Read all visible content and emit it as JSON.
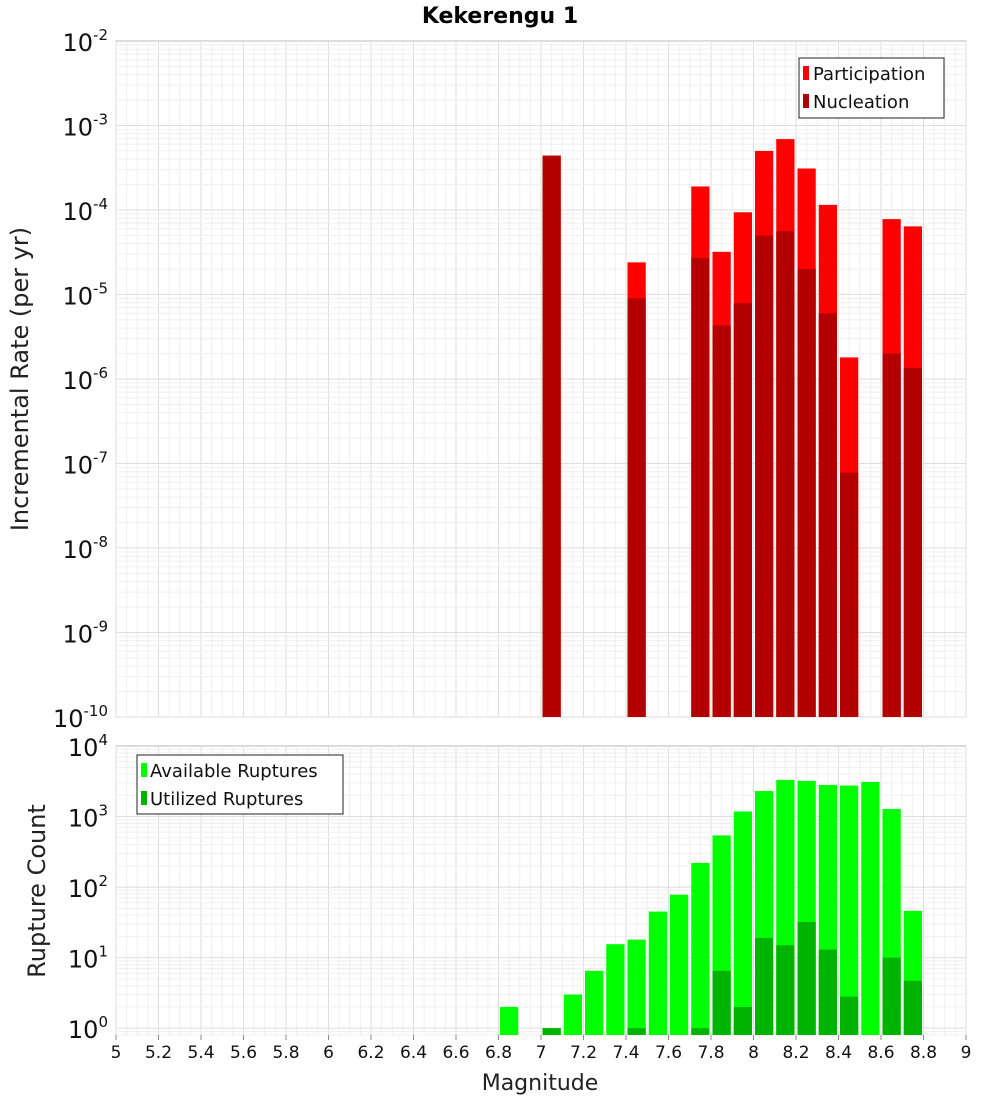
{
  "chart_data": [
    {
      "type": "bar",
      "title": "Kekerengu 1",
      "xlabel": "",
      "ylabel": "Incremental Rate (per yr)",
      "y_scale": "log",
      "ylim": [
        1e-10,
        0.01
      ],
      "xlim": [
        5,
        9
      ],
      "grid": true,
      "legend_position": "top-right",
      "series": [
        {
          "name": "Participation",
          "color": "#ff0000",
          "points": [
            [
              7.05,
              0.00044
            ],
            [
              7.45,
              2.4e-05
            ],
            [
              7.75,
              0.00019
            ],
            [
              7.85,
              3.2e-05
            ],
            [
              7.95,
              9.4e-05
            ],
            [
              8.05,
              0.0005
            ],
            [
              8.15,
              0.00069
            ],
            [
              8.25,
              0.00031
            ],
            [
              8.35,
              0.000115
            ],
            [
              8.45,
              1.8e-06
            ],
            [
              8.65,
              7.8e-05
            ],
            [
              8.75,
              6.4e-05
            ]
          ]
        },
        {
          "name": "Nucleation",
          "color": "#b30000",
          "points": [
            [
              7.05,
              0.00044
            ],
            [
              7.45,
              9e-06
            ],
            [
              7.75,
              2.7e-05
            ],
            [
              7.85,
              4.3e-06
            ],
            [
              7.95,
              7.9e-06
            ],
            [
              8.05,
              5e-05
            ],
            [
              8.15,
              5.6e-05
            ],
            [
              8.25,
              2e-05
            ],
            [
              8.35,
              6e-06
            ],
            [
              8.45,
              7.8e-08
            ],
            [
              8.65,
              2e-06
            ],
            [
              8.75,
              1.35e-06
            ]
          ]
        }
      ]
    },
    {
      "type": "bar",
      "title": "",
      "xlabel": "Magnitude",
      "ylabel": "Rupture Count",
      "y_scale": "log",
      "ylim": [
        0.8,
        10000.0
      ],
      "xlim": [
        5,
        9
      ],
      "grid": true,
      "legend_position": "top-left",
      "x_ticks": [
        "5",
        "5.2",
        "5.4",
        "5.6",
        "5.8",
        "6",
        "6.2",
        "6.4",
        "6.6",
        "6.8",
        "7",
        "7.2",
        "7.4",
        "7.6",
        "7.8",
        "8",
        "8.2",
        "8.4",
        "8.6",
        "8.8",
        "9"
      ],
      "series": [
        {
          "name": "Available Ruptures",
          "color": "#00ff00",
          "points": [
            [
              6.85,
              2
            ],
            [
              7.05,
              1
            ],
            [
              7.15,
              3
            ],
            [
              7.25,
              6.5
            ],
            [
              7.35,
              15.5
            ],
            [
              7.45,
              18
            ],
            [
              7.55,
              45
            ],
            [
              7.65,
              78
            ],
            [
              7.75,
              220
            ],
            [
              7.85,
              540
            ],
            [
              7.95,
              1180
            ],
            [
              8.05,
              2300
            ],
            [
              8.15,
              3300
            ],
            [
              8.25,
              3200
            ],
            [
              8.35,
              2800
            ],
            [
              8.45,
              2750
            ],
            [
              8.55,
              3100
            ],
            [
              8.65,
              1280
            ],
            [
              8.75,
              46
            ]
          ]
        },
        {
          "name": "Utilized Ruptures",
          "color": "#00b300",
          "points": [
            [
              7.05,
              1
            ],
            [
              7.45,
              1
            ],
            [
              7.75,
              1
            ],
            [
              7.85,
              6.5
            ],
            [
              7.95,
              2
            ],
            [
              8.05,
              19
            ],
            [
              8.15,
              15
            ],
            [
              8.25,
              32
            ],
            [
              8.35,
              13
            ],
            [
              8.45,
              2.8
            ],
            [
              8.65,
              10
            ],
            [
              8.75,
              4.7
            ]
          ]
        }
      ]
    }
  ]
}
